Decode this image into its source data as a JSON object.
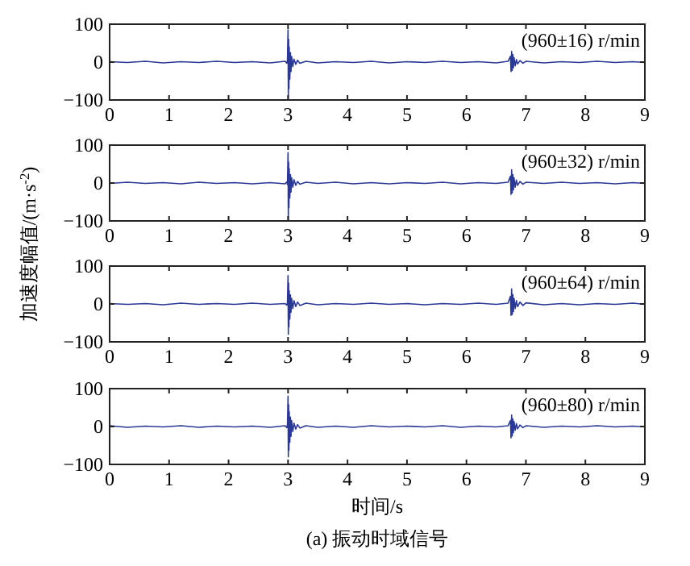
{
  "chart_data": [
    {
      "type": "line",
      "x": [
        0,
        0.3,
        0.6,
        0.9,
        1.2,
        1.5,
        1.8,
        2.1,
        2.4,
        2.7,
        2.95,
        2.98,
        2.99,
        3.0,
        3.005,
        3.01,
        3.015,
        3.02,
        3.03,
        3.04,
        3.05,
        3.06,
        3.08,
        3.1,
        3.13,
        3.16,
        3.2,
        3.3,
        3.5,
        3.8,
        4.1,
        4.4,
        4.7,
        5.0,
        5.3,
        5.6,
        5.9,
        6.2,
        6.5,
        6.7,
        6.74,
        6.75,
        6.76,
        6.77,
        6.78,
        6.79,
        6.8,
        6.82,
        6.84,
        6.86,
        6.9,
        6.95,
        7.0,
        7.3,
        7.6,
        7.9,
        8.2,
        8.5,
        8.8,
        9.0
      ],
      "color": "#2a3896",
      "values": [
        1,
        -1,
        2,
        -2,
        1,
        -1,
        2,
        -1,
        1,
        -2,
        2,
        -3,
        5,
        85,
        -95,
        60,
        -70,
        40,
        -45,
        25,
        -25,
        15,
        -12,
        8,
        -6,
        5,
        -3,
        2,
        -2,
        1,
        -1,
        2,
        -2,
        1,
        -1,
        2,
        -1,
        1,
        -2,
        2,
        15,
        -25,
        28,
        -22,
        20,
        -15,
        12,
        -10,
        7,
        -5,
        4,
        -3,
        2,
        -2,
        1,
        -1,
        2,
        -1,
        1,
        -1
      ],
      "xlim": [
        0,
        9
      ],
      "ylim": [
        -100,
        100
      ],
      "xticks": [
        0,
        1,
        2,
        3,
        4,
        5,
        6,
        7,
        8,
        9
      ],
      "yticks": [
        -100,
        0,
        100
      ],
      "annotations": [
        "(960±16) r/min"
      ]
    },
    {
      "type": "line",
      "x": [
        0,
        0.3,
        0.6,
        0.9,
        1.2,
        1.5,
        1.8,
        2.1,
        2.4,
        2.7,
        2.95,
        2.98,
        2.99,
        3.0,
        3.005,
        3.01,
        3.015,
        3.02,
        3.03,
        3.04,
        3.05,
        3.06,
        3.08,
        3.1,
        3.13,
        3.16,
        3.2,
        3.3,
        3.5,
        3.8,
        4.1,
        4.4,
        4.7,
        5.0,
        5.3,
        5.6,
        5.9,
        6.2,
        6.5,
        6.7,
        6.74,
        6.75,
        6.76,
        6.77,
        6.78,
        6.79,
        6.8,
        6.82,
        6.84,
        6.86,
        6.9,
        6.95,
        7.0,
        7.3,
        7.6,
        7.9,
        8.2,
        8.5,
        8.8,
        9.0
      ],
      "color": "#2a3896",
      "values": [
        -1,
        2,
        -1,
        1,
        -2,
        2,
        -1,
        1,
        -2,
        1,
        -2,
        3,
        -4,
        80,
        -100,
        55,
        -65,
        38,
        -40,
        22,
        -24,
        14,
        -11,
        9,
        -6,
        4,
        -3,
        2,
        -1,
        2,
        -2,
        1,
        -2,
        1,
        -1,
        2,
        -2,
        1,
        -1,
        2,
        18,
        -30,
        35,
        -26,
        22,
        -18,
        14,
        -11,
        8,
        -6,
        4,
        -3,
        2,
        -1,
        2,
        -1,
        1,
        -2,
        1,
        -1
      ],
      "xlim": [
        0,
        9
      ],
      "ylim": [
        -100,
        100
      ],
      "xticks": [
        0,
        1,
        2,
        3,
        4,
        5,
        6,
        7,
        8,
        9
      ],
      "yticks": [
        -100,
        0,
        100
      ],
      "annotations": [
        "(960±32) r/min"
      ],
      "ylabel": "加速度幅值/(m·s$^{-2}$)"
    },
    {
      "type": "line",
      "x": [
        0,
        0.3,
        0.6,
        0.9,
        1.2,
        1.5,
        1.8,
        2.1,
        2.4,
        2.7,
        2.95,
        2.98,
        2.99,
        3.0,
        3.005,
        3.01,
        3.015,
        3.02,
        3.03,
        3.04,
        3.05,
        3.06,
        3.08,
        3.1,
        3.13,
        3.16,
        3.2,
        3.3,
        3.5,
        3.8,
        4.1,
        4.4,
        4.7,
        5.0,
        5.3,
        5.6,
        5.9,
        6.2,
        6.5,
        6.7,
        6.74,
        6.75,
        6.76,
        6.77,
        6.78,
        6.79,
        6.8,
        6.82,
        6.84,
        6.86,
        6.9,
        6.95,
        7.0,
        7.3,
        7.6,
        7.9,
        8.2,
        8.5,
        8.8,
        9.0
      ],
      "color": "#2a3896",
      "values": [
        1,
        -1,
        1,
        -2,
        2,
        -1,
        1,
        -1,
        2,
        -1,
        1,
        -3,
        4,
        75,
        -80,
        55,
        -60,
        35,
        -40,
        24,
        -22,
        15,
        -12,
        9,
        -7,
        5,
        -4,
        2,
        -2,
        1,
        -1,
        2,
        -1,
        1,
        -2,
        1,
        -1,
        2,
        -1,
        2,
        20,
        -30,
        40,
        -28,
        25,
        -20,
        15,
        -12,
        9,
        -7,
        5,
        -4,
        3,
        -2,
        1,
        -2,
        1,
        -1,
        2,
        -1
      ],
      "xlim": [
        0,
        9
      ],
      "ylim": [
        -100,
        100
      ],
      "xticks": [
        0,
        1,
        2,
        3,
        4,
        5,
        6,
        7,
        8,
        9
      ],
      "yticks": [
        -100,
        0,
        100
      ],
      "annotations": [
        "(960±64) r/min"
      ]
    },
    {
      "type": "line",
      "x": [
        0,
        0.3,
        0.6,
        0.9,
        1.2,
        1.5,
        1.8,
        2.1,
        2.4,
        2.7,
        2.95,
        2.98,
        2.99,
        3.0,
        3.005,
        3.01,
        3.015,
        3.02,
        3.03,
        3.04,
        3.05,
        3.06,
        3.08,
        3.1,
        3.13,
        3.16,
        3.2,
        3.3,
        3.5,
        3.8,
        4.1,
        4.4,
        4.7,
        5.0,
        5.3,
        5.6,
        5.9,
        6.2,
        6.5,
        6.7,
        6.74,
        6.75,
        6.76,
        6.77,
        6.78,
        6.79,
        6.8,
        6.82,
        6.84,
        6.86,
        6.9,
        6.95,
        7.0,
        7.3,
        7.6,
        7.9,
        8.2,
        8.5,
        8.8,
        9.0
      ],
      "color": "#2a3896",
      "values": [
        2,
        -2,
        1,
        -1,
        2,
        -2,
        1,
        -1,
        1,
        -2,
        2,
        -3,
        5,
        80,
        -80,
        58,
        -62,
        40,
        -42,
        25,
        -26,
        16,
        -13,
        9,
        -7,
        5,
        -4,
        2,
        -2,
        1,
        -2,
        2,
        -1,
        1,
        -1,
        2,
        -2,
        1,
        -1,
        2,
        16,
        -30,
        30,
        -25,
        20,
        -16,
        13,
        -10,
        8,
        -6,
        4,
        -3,
        2,
        -2,
        1,
        -1,
        2,
        -1,
        1,
        -1
      ],
      "xlim": [
        0,
        9
      ],
      "ylim": [
        -100,
        100
      ],
      "xticks": [
        0,
        1,
        2,
        3,
        4,
        5,
        6,
        7,
        8,
        9
      ],
      "yticks": [
        -100,
        0,
        100
      ],
      "annotations": [
        "(960±80) r/min",
        "(a) 振动时域信号"
      ],
      "xlabel": "时间/s"
    }
  ]
}
